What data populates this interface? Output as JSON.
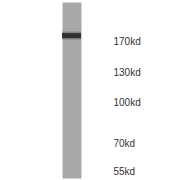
{
  "chart_data": {
    "type": "western_blot",
    "bands": [
      180
    ],
    "ylim": [
      52,
      240
    ],
    "log": "y",
    "yticks": [
      {
        "value": 170,
        "label": "170kd"
      },
      {
        "value": 130,
        "label": "130kd"
      },
      {
        "value": 100,
        "label": "100kd"
      },
      {
        "value": 70,
        "label": "70kd"
      },
      {
        "value": 55,
        "label": "55kd"
      }
    ],
    "tick_labels": "y"
  }
}
